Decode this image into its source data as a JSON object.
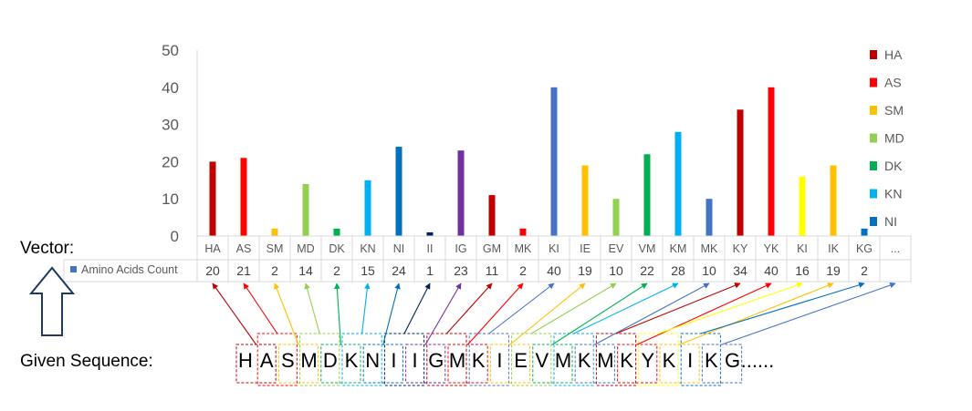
{
  "labels": {
    "vector": "Vector:",
    "given_sequence": "Given Sequence:",
    "sequence_tail": "......"
  },
  "sequence": [
    "H",
    "A",
    "S",
    "M",
    "D",
    "K",
    "N",
    "I",
    "I",
    "G",
    "M",
    "K",
    "I",
    "E",
    "V",
    "M",
    "K",
    "M",
    "K",
    "Y",
    "K",
    "I",
    "K",
    "G"
  ],
  "chart_data": {
    "type": "bar",
    "categories": [
      "HA",
      "AS",
      "SM",
      "MD",
      "DK",
      "KN",
      "NI",
      "II",
      "IG",
      "GM",
      "MK",
      "KI",
      "IE",
      "EV",
      "VM",
      "KM",
      "MK",
      "KY",
      "YK",
      "KI",
      "IK",
      "KG"
    ],
    "extra_category": "...",
    "series": [
      {
        "name": "Amino Acids Count",
        "values": [
          20,
          21,
          2,
          14,
          2,
          15,
          24,
          1,
          23,
          11,
          2,
          40,
          19,
          10,
          22,
          28,
          10,
          34,
          40,
          16,
          19,
          2
        ]
      }
    ],
    "series_marker_color": "#4472C4",
    "bar_colors": [
      "#C00000",
      "#FF0000",
      "#FFC000",
      "#92D050",
      "#00B050",
      "#00B0F0",
      "#0070C0",
      "#002060",
      "#7030A0",
      "#C00000",
      "#FF0000",
      "#4472C4",
      "#FFC000",
      "#92D050",
      "#00B050",
      "#00B0F0",
      "#4472C4",
      "#C00000",
      "#FF0000",
      "#FFFF00",
      "#FFC000",
      "#0070C0"
    ],
    "ylim": [
      0,
      50
    ],
    "yticks": [
      0,
      10,
      20,
      30,
      40,
      50
    ],
    "grid": false,
    "legend_position": "right",
    "legend": [
      {
        "name": "HA",
        "color": "#C00000"
      },
      {
        "name": "AS",
        "color": "#FF0000"
      },
      {
        "name": "SM",
        "color": "#FFC000"
      },
      {
        "name": "MD",
        "color": "#92D050"
      },
      {
        "name": "DK",
        "color": "#00B050"
      },
      {
        "name": "KN",
        "color": "#00B0F0"
      },
      {
        "name": "NI",
        "color": "#0070C0"
      }
    ]
  }
}
